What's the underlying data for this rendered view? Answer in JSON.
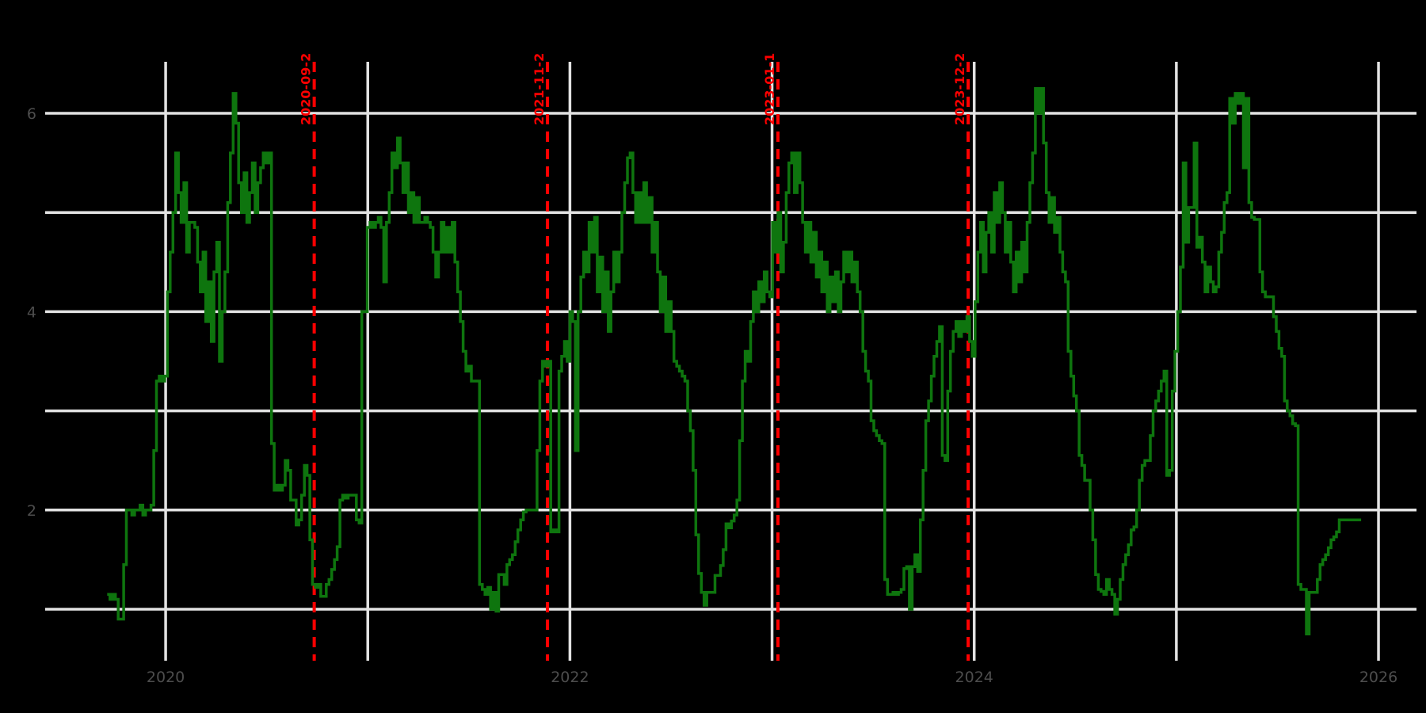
{
  "figure": {
    "background": "#000000"
  },
  "chart_data": {
    "type": "line",
    "title": "",
    "x_axis": {
      "gridline_years": [
        2020,
        2021,
        2022,
        2023,
        2024,
        2025,
        2026
      ],
      "tick_labels": [
        {
          "t": 2020,
          "label": "2020"
        },
        {
          "t": 2022,
          "label": "2022"
        },
        {
          "t": 2024,
          "label": "2024"
        },
        {
          "t": 2026,
          "label": "2026"
        }
      ],
      "range": [
        2019.404,
        2026.188
      ]
    },
    "y_axis": {
      "gridline_values": [
        1,
        2,
        3,
        4,
        5,
        6
      ],
      "tick_labels": [
        {
          "v": 2,
          "label": "2"
        },
        {
          "v": 4,
          "label": "4"
        },
        {
          "v": 6,
          "label": "6"
        }
      ],
      "range": [
        0.481,
        6.519
      ]
    },
    "events": [
      {
        "t": 2020.735,
        "label": "2020-09-2"
      },
      {
        "t": 2021.889,
        "label": "2021-11-2"
      },
      {
        "t": 2023.029,
        "label": "2023-01-1"
      },
      {
        "t": 2023.97,
        "label": "2023-12-2"
      }
    ],
    "style": {
      "grid_color": "#e2e2e2",
      "tick_label_color": "#4d4d4d",
      "event_color": "#ff0000",
      "series_color": "#0e750e",
      "background": "#000000"
    },
    "series": [
      {
        "name": "series-1",
        "t_start": 2019.711,
        "t_step": 0.013544,
        "values": [
          1.15,
          1.1,
          1.15,
          1.1,
          0.9,
          0.9,
          1.45,
          2.0,
          2.0,
          1.95,
          2.0,
          2.0,
          2.05,
          1.95,
          2.0,
          2.0,
          2.05,
          2.6,
          3.3,
          3.35,
          3.3,
          3.35,
          4.2,
          4.6,
          5.0,
          5.6,
          5.2,
          4.9,
          5.3,
          4.6,
          4.9,
          4.9,
          4.85,
          4.5,
          4.2,
          4.6,
          3.9,
          4.3,
          3.7,
          4.4,
          4.7,
          3.5,
          4.0,
          4.4,
          5.1,
          5.6,
          6.2,
          5.9,
          5.3,
          5.0,
          5.4,
          4.9,
          5.2,
          5.5,
          5.0,
          5.3,
          5.45,
          5.6,
          5.5,
          5.6,
          2.67,
          2.2,
          2.25,
          2.2,
          2.25,
          2.5,
          2.4,
          2.1,
          2.1,
          1.85,
          1.9,
          2.15,
          2.45,
          2.35,
          1.7,
          1.25,
          1.22,
          1.25,
          1.13,
          1.13,
          1.25,
          1.3,
          1.4,
          1.5,
          1.63,
          2.1,
          2.15,
          2.12,
          2.15,
          2.15,
          2.15,
          1.9,
          1.87,
          4.0,
          4.0,
          4.85,
          4.9,
          4.85,
          4.9,
          4.95,
          4.85,
          4.3,
          4.9,
          5.2,
          5.6,
          5.45,
          5.75,
          5.5,
          5.2,
          5.5,
          5.0,
          5.2,
          4.9,
          5.15,
          4.9,
          4.9,
          4.95,
          4.9,
          4.85,
          4.6,
          4.35,
          4.6,
          4.9,
          4.6,
          4.85,
          4.6,
          4.9,
          4.5,
          4.2,
          3.9,
          3.6,
          3.4,
          3.45,
          3.3,
          3.3,
          3.3,
          1.25,
          1.2,
          1.15,
          1.22,
          1.0,
          1.17,
          0.98,
          1.35,
          1.35,
          1.25,
          1.45,
          1.5,
          1.55,
          1.68,
          1.8,
          1.9,
          1.98,
          2.0,
          2.0,
          2.0,
          2.0,
          2.6,
          3.3,
          3.5,
          3.45,
          3.5,
          1.78,
          1.8,
          1.78,
          3.4,
          3.55,
          3.7,
          3.5,
          4.0,
          3.9,
          2.6,
          4.0,
          4.35,
          4.6,
          4.4,
          4.9,
          4.6,
          4.95,
          4.2,
          4.55,
          4.0,
          4.4,
          3.8,
          4.2,
          4.6,
          4.3,
          4.6,
          5.0,
          5.3,
          5.55,
          5.6,
          5.2,
          4.9,
          5.2,
          4.9,
          5.3,
          4.9,
          5.15,
          4.6,
          4.9,
          4.4,
          4.0,
          4.35,
          3.8,
          4.1,
          3.8,
          3.5,
          3.45,
          3.4,
          3.35,
          3.3,
          3.0,
          2.8,
          2.4,
          1.75,
          1.36,
          1.17,
          1.04,
          1.17,
          1.17,
          1.17,
          1.34,
          1.34,
          1.44,
          1.6,
          1.86,
          1.82,
          1.89,
          1.95,
          2.1,
          2.7,
          3.3,
          3.6,
          3.5,
          3.9,
          4.2,
          4.0,
          4.3,
          4.1,
          4.4,
          4.2,
          4.15,
          4.9,
          4.6,
          5.0,
          4.4,
          4.7,
          5.2,
          5.5,
          5.6,
          5.2,
          5.6,
          5.3,
          4.9,
          4.6,
          4.9,
          4.5,
          4.8,
          4.35,
          4.6,
          4.2,
          4.5,
          4.0,
          4.35,
          4.1,
          4.4,
          4.0,
          4.3,
          4.6,
          4.4,
          4.6,
          4.3,
          4.5,
          4.2,
          4.0,
          3.6,
          3.4,
          3.3,
          2.9,
          2.8,
          2.75,
          2.7,
          2.67,
          1.3,
          1.15,
          1.15,
          1.17,
          1.15,
          1.17,
          1.2,
          1.41,
          1.43,
          1.0,
          1.43,
          1.55,
          1.38,
          1.9,
          2.4,
          2.9,
          3.1,
          3.35,
          3.55,
          3.7,
          3.85,
          2.55,
          2.5,
          3.2,
          3.6,
          3.8,
          3.9,
          3.75,
          3.9,
          3.8,
          3.95,
          3.7,
          3.55,
          4.1,
          4.6,
          4.9,
          4.4,
          4.8,
          5.0,
          4.6,
          5.2,
          4.9,
          5.3,
          5.0,
          4.6,
          4.9,
          4.5,
          4.2,
          4.6,
          4.3,
          4.7,
          4.4,
          4.9,
          5.3,
          5.6,
          6.25,
          6.0,
          6.25,
          5.7,
          5.2,
          4.9,
          5.15,
          4.8,
          4.95,
          4.6,
          4.4,
          4.3,
          3.6,
          3.35,
          3.15,
          3.0,
          2.55,
          2.45,
          2.3,
          2.3,
          2.0,
          1.7,
          1.35,
          1.2,
          1.18,
          1.15,
          1.3,
          1.2,
          1.15,
          0.95,
          1.1,
          1.3,
          1.45,
          1.55,
          1.65,
          1.8,
          1.83,
          2.0,
          2.3,
          2.45,
          2.5,
          2.5,
          2.75,
          3.0,
          3.1,
          3.2,
          3.3,
          3.4,
          2.35,
          2.4,
          3.2,
          3.6,
          4.0,
          4.45,
          5.5,
          4.7,
          5.05,
          5.05,
          5.7,
          4.65,
          4.75,
          4.5,
          4.2,
          4.45,
          4.3,
          4.2,
          4.25,
          4.6,
          4.8,
          5.1,
          5.2,
          6.15,
          5.9,
          6.2,
          6.1,
          6.2,
          5.45,
          6.15,
          5.1,
          4.95,
          4.93,
          4.93,
          4.4,
          4.2,
          4.15,
          4.15,
          4.15,
          3.95,
          3.8,
          3.63,
          3.55,
          3.1,
          3.0,
          2.95,
          2.87,
          2.85,
          1.25,
          1.2,
          1.2,
          0.75,
          1.17,
          1.17,
          1.17,
          1.3,
          1.45,
          1.5,
          1.55,
          1.62,
          1.7,
          1.73,
          1.78,
          1.9,
          1.9,
          1.9,
          1.9,
          1.9,
          1.9,
          1.9,
          1.9,
          1.9
        ]
      }
    ]
  }
}
